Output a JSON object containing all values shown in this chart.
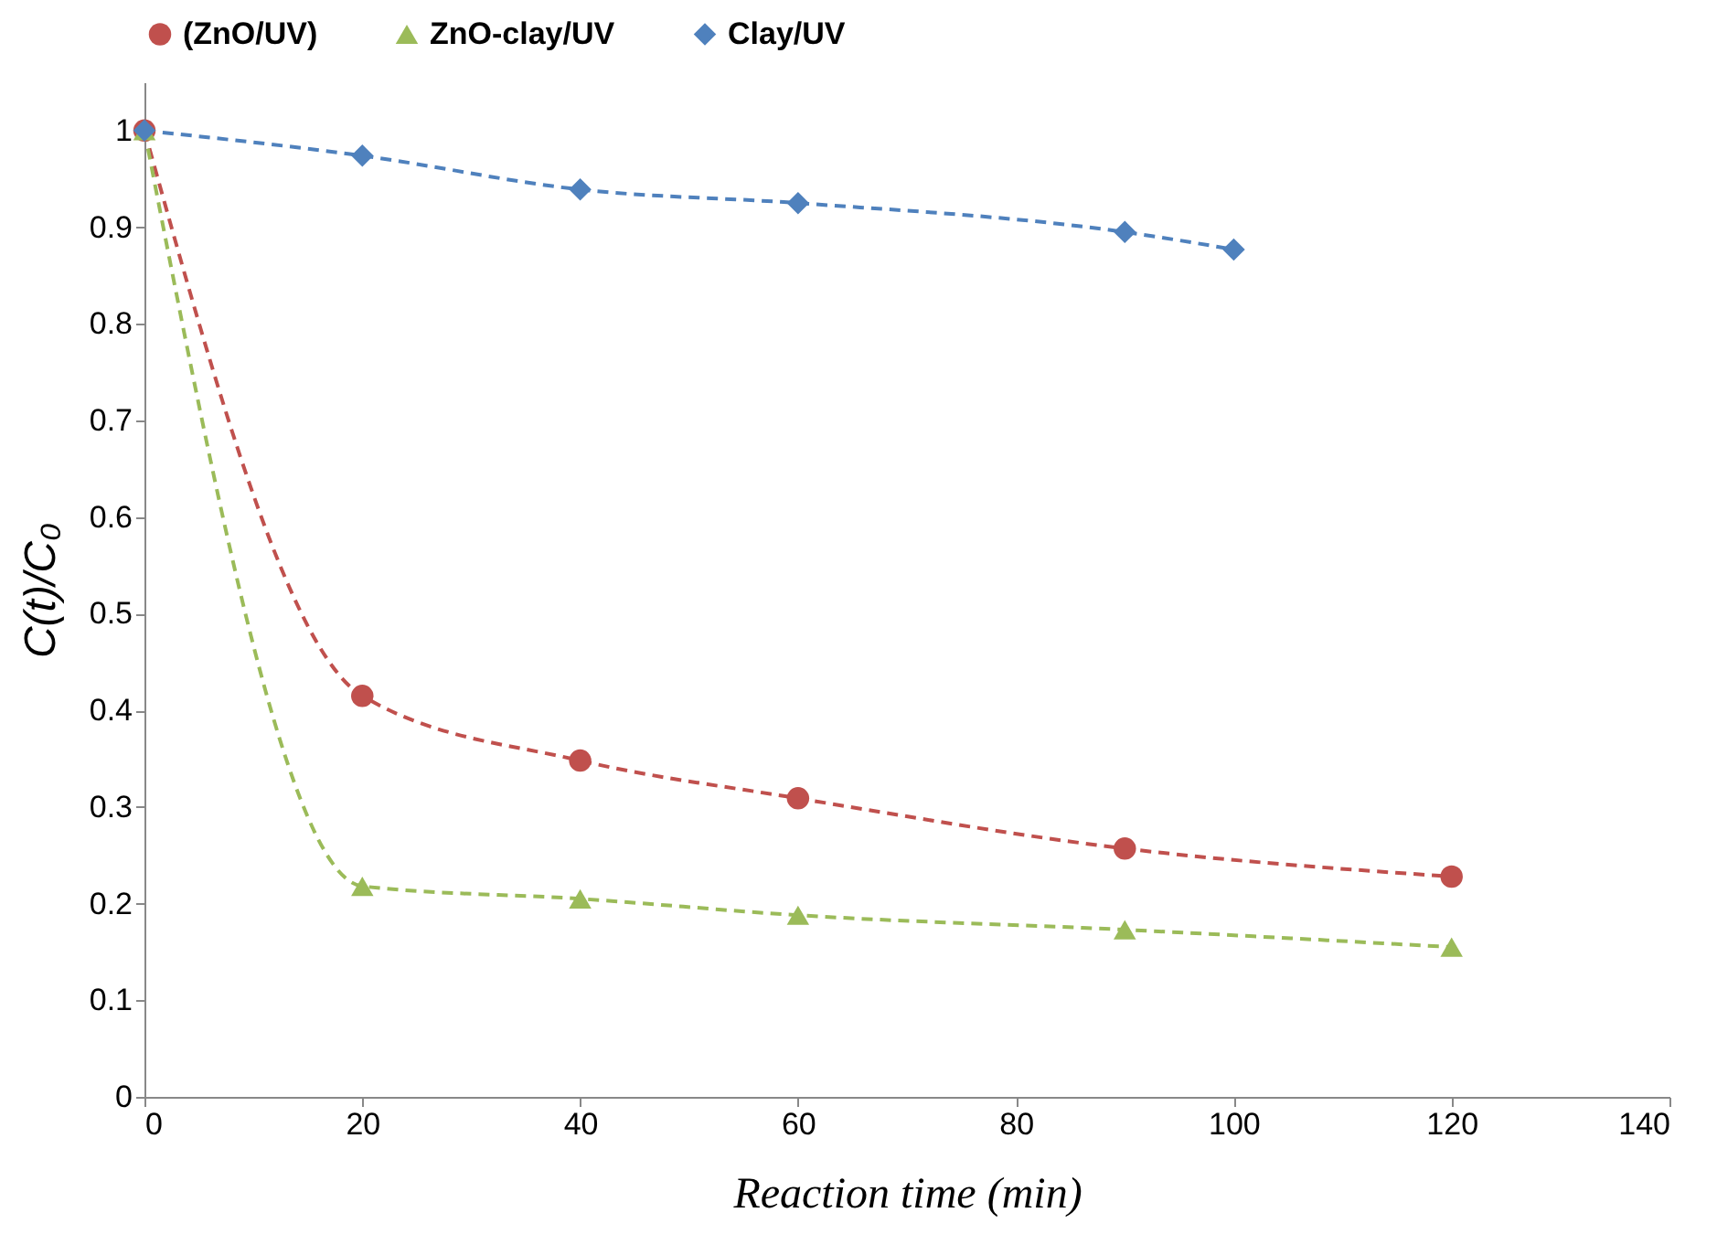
{
  "chart_data": {
    "type": "line",
    "xlabel": "Reaction time (min)",
    "ylabel": "C(t)/C₀",
    "xlim": [
      0,
      140
    ],
    "xticks": [
      0,
      20,
      40,
      60,
      80,
      100,
      120,
      140
    ],
    "ylim": [
      0,
      1.05
    ],
    "yticks": [
      0,
      0.1,
      0.2,
      0.3,
      0.4,
      0.5,
      0.6,
      0.7,
      0.8,
      0.9,
      1
    ],
    "grid": false,
    "legend": "top",
    "line_style": "dashed",
    "series": [
      {
        "name": "(ZnO/UV)",
        "color": "#c0504d",
        "marker": "circle",
        "x": [
          0,
          20,
          40,
          60,
          90,
          120
        ],
        "values": [
          1,
          0.415,
          0.348,
          0.309,
          0.257,
          0.228
        ]
      },
      {
        "name": "ZnO-clay/UV",
        "color": "#9bbb59",
        "marker": "triangle",
        "x": [
          0,
          20,
          40,
          60,
          90,
          120
        ],
        "values": [
          1,
          0.218,
          0.205,
          0.188,
          0.173,
          0.155
        ]
      },
      {
        "name": "Clay/UV",
        "color": "#4f81bd",
        "marker": "diamond",
        "x": [
          0,
          20,
          40,
          60,
          90,
          100
        ],
        "values": [
          1,
          0.974,
          0.939,
          0.925,
          0.895,
          0.877
        ]
      }
    ]
  }
}
